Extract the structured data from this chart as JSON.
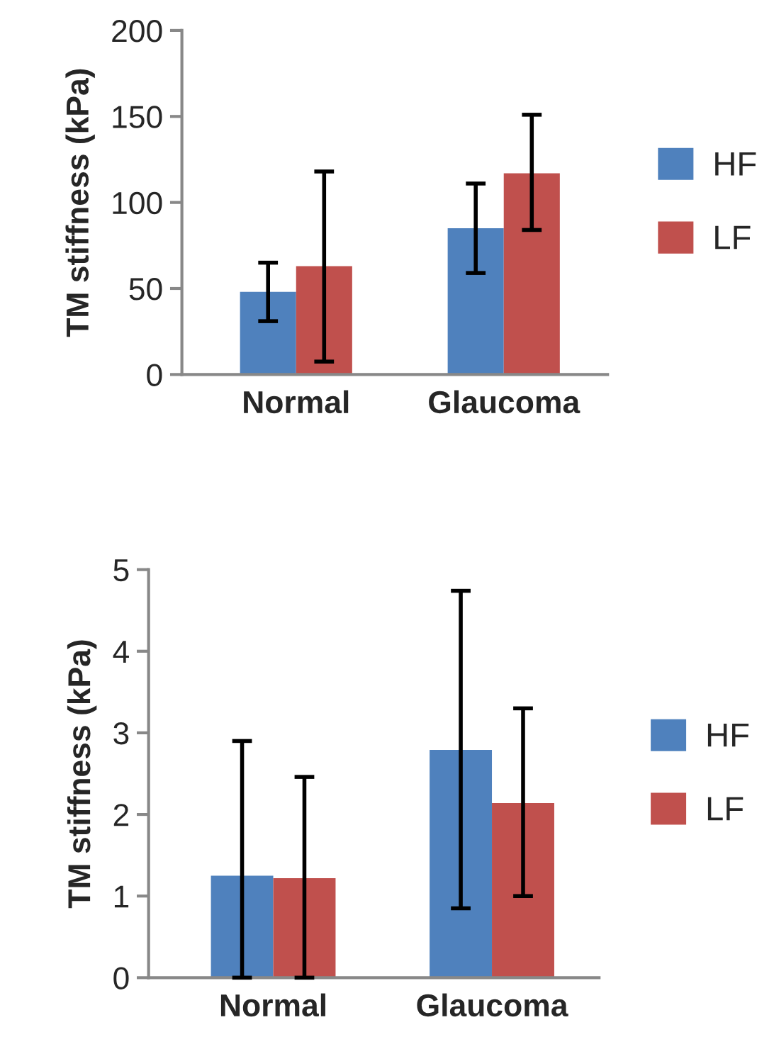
{
  "chart_data": [
    {
      "type": "bar",
      "ylabel": "TM stiffness (kPa)",
      "categories": [
        "Normal",
        "Glaucoma"
      ],
      "ylim": [
        0,
        200
      ],
      "yticks": [
        0,
        50,
        100,
        150,
        200
      ],
      "grid": false,
      "legend": "right",
      "series": [
        {
          "name": "HF",
          "color": "#4f81bd",
          "values": [
            48,
            85
          ],
          "errors": [
            [
              31,
              65
            ],
            [
              59,
              111
            ]
          ]
        },
        {
          "name": "LF",
          "color": "#c0504d",
          "values": [
            63,
            117
          ],
          "errors": [
            [
              7.5,
              118
            ],
            [
              84,
              151
            ]
          ]
        }
      ]
    },
    {
      "type": "bar",
      "ylabel": "TM stiffness (kPa)",
      "categories": [
        "Normal",
        "Glaucoma"
      ],
      "ylim": [
        0,
        5
      ],
      "yticks": [
        0,
        1,
        2,
        3,
        4,
        5
      ],
      "grid": false,
      "legend": "right",
      "series": [
        {
          "name": "HF",
          "color": "#4f81bd",
          "values": [
            1.25,
            2.79
          ],
          "errors": [
            [
              0,
              2.9
            ],
            [
              0.85,
              4.74
            ]
          ]
        },
        {
          "name": "LF",
          "color": "#c0504d",
          "values": [
            1.22,
            2.14
          ],
          "errors": [
            [
              0,
              2.46
            ],
            [
              1.0,
              3.3
            ]
          ]
        }
      ]
    }
  ]
}
